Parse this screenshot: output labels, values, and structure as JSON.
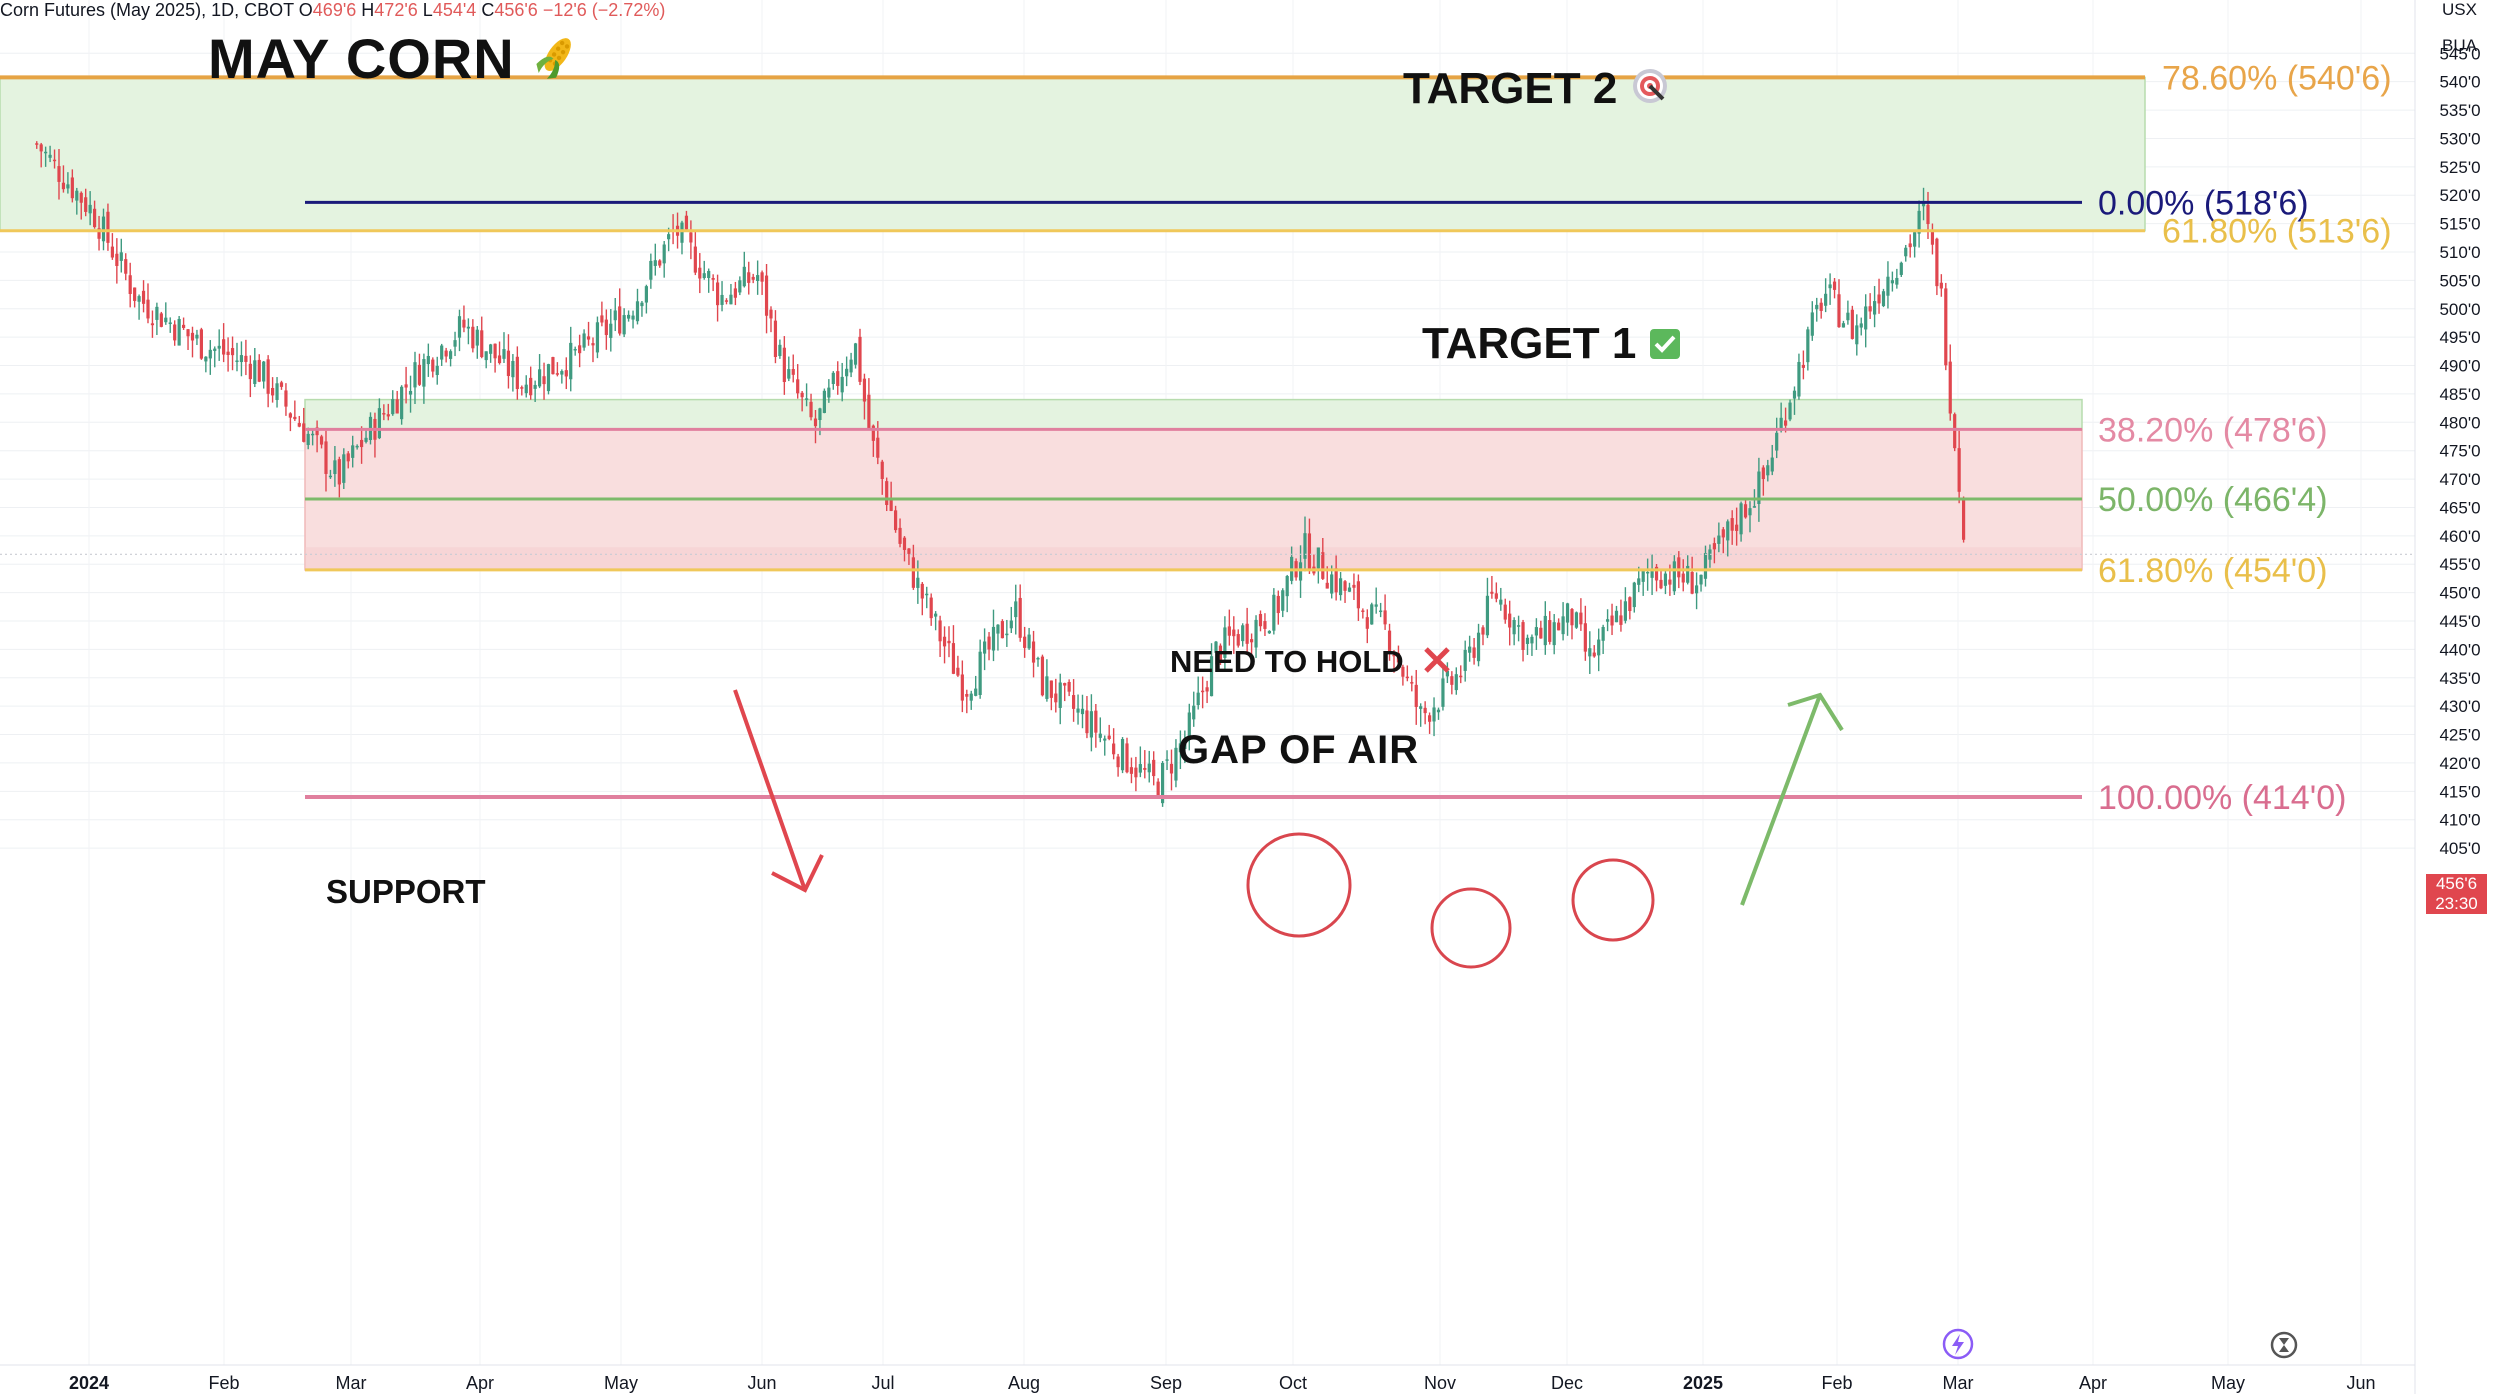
{
  "header": {
    "symbol_text": "Corn Futures (May 2025), 1D, CBOT",
    "open_label": "O",
    "open_value": "469'6",
    "high_label": "H",
    "high_value": "472'6",
    "low_label": "L",
    "low_value": "454'4",
    "close_label": "C",
    "close_value": "456'6",
    "change": "−12'6 (−2.72%)"
  },
  "annotations": {
    "title": "MAY CORN",
    "target2": "TARGET 2",
    "target1": "TARGET 1",
    "need_to_hold": "NEED TO HOLD",
    "gap_of_air": "GAP OF AIR",
    "support": "SUPPORT"
  },
  "price_axis": {
    "currency": "USX",
    "unit": "BUA",
    "current_price": "456'6",
    "countdown": "23:30"
  },
  "colors": {
    "up": "#3f9a80",
    "down": "#e0464e",
    "orange_line": "#e6a444",
    "yellow_line": "#f0c85a",
    "navy_line": "#1a1a7a",
    "green_line": "#7dba6a",
    "pink_line": "#e07f9e",
    "zone_green": "#e4f3e0",
    "zone_red": "#f9dede"
  },
  "chart_data": {
    "type": "candlestick",
    "title": "Corn Futures (May 2025), 1D, CBOT",
    "ylabel": "USX",
    "ylim": [
      402,
      549
    ],
    "y_ticks": [
      "405'0",
      "410'0",
      "415'0",
      "420'0",
      "425'0",
      "430'0",
      "435'0",
      "440'0",
      "445'0",
      "450'0",
      "455'0",
      "460'0",
      "465'0",
      "470'0",
      "475'0",
      "480'0",
      "485'0",
      "490'0",
      "495'0",
      "500'0",
      "505'0",
      "510'0",
      "515'0",
      "520'0",
      "525'0",
      "530'0",
      "535'0",
      "540'0",
      "545'0"
    ],
    "x_labels": [
      "2024",
      "Feb",
      "Mar",
      "Apr",
      "May",
      "Jun",
      "Jul",
      "Aug",
      "Sep",
      "Oct",
      "Nov",
      "Dec",
      "2025",
      "Feb",
      "Mar",
      "Apr",
      "May",
      "Jun"
    ],
    "fib_levels": [
      {
        "label": "78.60% (540'6)",
        "price": 540.75
      },
      {
        "label": "0.00% (518'6)",
        "price": 518.75
      },
      {
        "label": "61.80% (513'6)",
        "price": 513.75
      },
      {
        "label": "38.20% (478'6)",
        "price": 478.75
      },
      {
        "label": "50.00% (466'4)",
        "price": 466.5
      },
      {
        "label": "61.80% (454'0)",
        "price": 454
      },
      {
        "label": "100.00% (414'0)",
        "price": 414
      }
    ],
    "zones": [
      {
        "name": "target zone",
        "from": 513.75,
        "to": 540.75
      },
      {
        "name": "need to hold",
        "from": 478.75,
        "to": 484
      },
      {
        "name": "gap of air",
        "from": 454,
        "to": 478.75
      }
    ],
    "price_path": [
      [
        "2023-12-20",
        529
      ],
      [
        "2024-01-02",
        517
      ],
      [
        "2024-01-12",
        502
      ],
      [
        "2024-01-26",
        494
      ],
      [
        "2024-02-08",
        490
      ],
      [
        "2024-02-20",
        478
      ],
      [
        "2024-02-27",
        470
      ],
      [
        "2024-03-05",
        478
      ],
      [
        "2024-03-18",
        490
      ],
      [
        "2024-03-28",
        497
      ],
      [
        "2024-04-10",
        487
      ],
      [
        "2024-04-22",
        492
      ],
      [
        "2024-05-03",
        500
      ],
      [
        "2024-05-13",
        514
      ],
      [
        "2024-05-23",
        502
      ],
      [
        "2024-05-31",
        506
      ],
      [
        "2024-06-06",
        490
      ],
      [
        "2024-06-14",
        479
      ],
      [
        "2024-06-24",
        494
      ],
      [
        "2024-06-28",
        477
      ],
      [
        "2024-07-05",
        458
      ],
      [
        "2024-07-12",
        445
      ],
      [
        "2024-07-19",
        433
      ],
      [
        "2024-07-30",
        447
      ],
      [
        "2024-08-05",
        434
      ],
      [
        "2024-08-14",
        428
      ],
      [
        "2024-08-23",
        421
      ],
      [
        "2024-08-30",
        416
      ],
      [
        "2024-09-06",
        425
      ],
      [
        "2024-09-13",
        440
      ],
      [
        "2024-09-27",
        447
      ],
      [
        "2024-10-03",
        458
      ],
      [
        "2024-10-10",
        452
      ],
      [
        "2024-10-21",
        443
      ],
      [
        "2024-10-28",
        428
      ],
      [
        "2024-11-07",
        437
      ],
      [
        "2024-11-14",
        450
      ],
      [
        "2024-11-22",
        441
      ],
      [
        "2024-12-02",
        446
      ],
      [
        "2024-12-06",
        438
      ],
      [
        "2024-12-13",
        446
      ],
      [
        "2024-12-20",
        454
      ],
      [
        "2024-12-31",
        452
      ],
      [
        "2025-01-08",
        462
      ],
      [
        "2025-01-15",
        470
      ],
      [
        "2025-01-22",
        487
      ],
      [
        "2025-01-29",
        503
      ],
      [
        "2025-02-05",
        496
      ],
      [
        "2025-02-12",
        505
      ],
      [
        "2025-02-18",
        512
      ],
      [
        "2025-02-21",
        517
      ],
      [
        "2025-02-25",
        503
      ],
      [
        "2025-02-27",
        486
      ],
      [
        "2025-03-03",
        456.75
      ]
    ],
    "arrows": [
      {
        "direction": "down",
        "color": "#e0464e"
      },
      {
        "direction": "up",
        "color": "#7dba6a"
      }
    ],
    "circled_highs": [
      "2024-10-01",
      "2024-11-11",
      "2024-12-12"
    ]
  }
}
